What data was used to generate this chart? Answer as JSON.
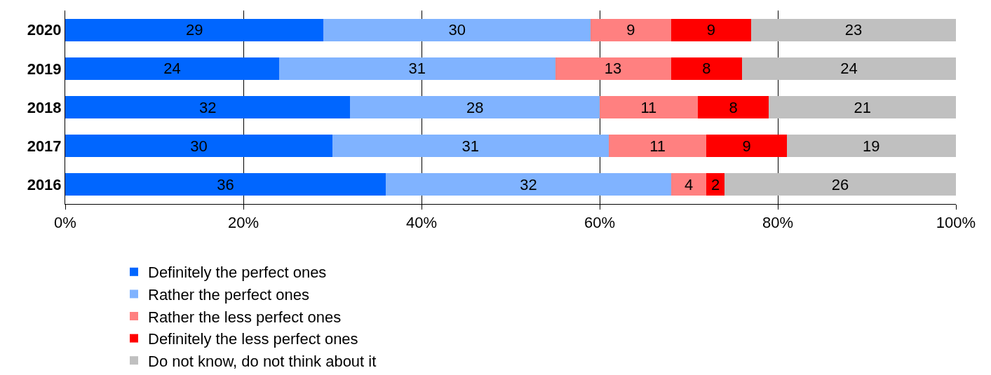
{
  "chart_data": {
    "type": "bar",
    "orientation": "horizontal",
    "stacked": true,
    "categories": [
      "2020",
      "2019",
      "2018",
      "2017",
      "2016"
    ],
    "series": [
      {
        "name": "Definitely the perfect ones",
        "color": "#0066ff",
        "values": [
          29,
          24,
          32,
          30,
          36
        ]
      },
      {
        "name": "Rather the perfect ones",
        "color": "#80b3ff",
        "values": [
          30,
          31,
          28,
          31,
          32
        ]
      },
      {
        "name": "Rather the less perfect ones",
        "color": "#ff8080",
        "values": [
          9,
          13,
          11,
          11,
          4
        ]
      },
      {
        "name": "Definitely the less perfect ones",
        "color": "#ff0000",
        "values": [
          9,
          8,
          8,
          9,
          2
        ]
      },
      {
        "name": "Do not know, do not think about it",
        "color": "#c0c0c0",
        "values": [
          23,
          24,
          21,
          19,
          26
        ]
      }
    ],
    "xlim": [
      0,
      100
    ],
    "xticks": [
      {
        "value": 0,
        "label": "0%"
      },
      {
        "value": 20,
        "label": "20%"
      },
      {
        "value": 40,
        "label": "40%"
      },
      {
        "value": 60,
        "label": "60%"
      },
      {
        "value": 80,
        "label": "80%"
      },
      {
        "value": 100,
        "label": "100%"
      }
    ],
    "grid": "x",
    "legend": "bottom",
    "data_labels": true
  }
}
